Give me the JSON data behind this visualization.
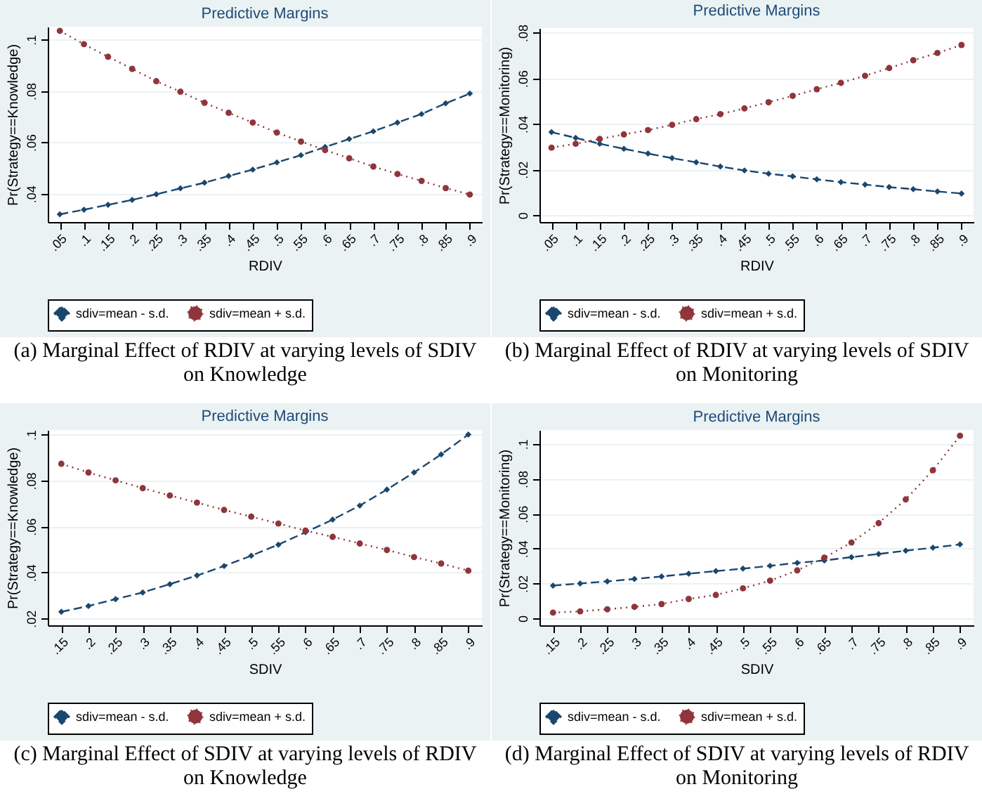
{
  "chart_data": [
    {
      "type": "line",
      "title": "Predictive Margins",
      "xlabel": "RDIV",
      "ylabel": "Pr(Strategy==Knowledge)",
      "categories": [
        ".05",
        ".1",
        ".15",
        ".2",
        ".25",
        ".3",
        ".35",
        ".4",
        ".45",
        ".5",
        ".55",
        ".6",
        ".65",
        ".7",
        ".75",
        ".8",
        ".85",
        ".9"
      ],
      "ylim": [
        0.029,
        0.105
      ],
      "yticks": [
        {
          "value": 0.04,
          "label": ".04"
        },
        {
          "value": 0.06,
          "label": ".06"
        },
        {
          "value": 0.08,
          "label": ".08"
        },
        {
          "value": 0.1,
          "label": ".1"
        }
      ],
      "grid": "y",
      "legend": "bottom",
      "series": [
        {
          "name": "sdiv=mean - s.d.",
          "color": "#1a476f",
          "marker": "diamond",
          "line_style": "dashed",
          "values": [
            0.032,
            0.0338,
            0.0357,
            0.0376,
            0.0398,
            0.0421,
            0.0443,
            0.0469,
            0.0494,
            0.0522,
            0.055,
            0.0582,
            0.0613,
            0.0643,
            0.0677,
            0.071,
            0.0752,
            0.079
          ]
        },
        {
          "name": "sdiv=mean + s.d.",
          "color": "#90353b",
          "marker": "circle",
          "line_style": "dotted",
          "values": [
            0.1034,
            0.0982,
            0.0933,
            0.0886,
            0.0838,
            0.0797,
            0.0754,
            0.0715,
            0.0677,
            0.0638,
            0.0603,
            0.057,
            0.0538,
            0.0506,
            0.0477,
            0.045,
            0.0422,
            0.0397
          ]
        }
      ],
      "annotations": [
        "(a) Marginal Effect of RDIV at varying levels of SDIV on Knowledge"
      ]
    },
    {
      "type": "line",
      "title": "Predictive Margins",
      "xlabel": "RDIV",
      "ylabel": "Pr(Strategy==Monitoring)",
      "categories": [
        ".05",
        ".1",
        ".15",
        ".2",
        ".25",
        ".3",
        ".35",
        ".4",
        ".45",
        ".5",
        ".55",
        ".6",
        ".65",
        ".7",
        ".75",
        ".8",
        ".85",
        ".9"
      ],
      "ylim": [
        -0.003,
        0.082
      ],
      "yticks": [
        {
          "value": 0,
          "label": "0"
        },
        {
          "value": 0.02,
          "label": ".02"
        },
        {
          "value": 0.04,
          "label": ".04"
        },
        {
          "value": 0.06,
          "label": ".06"
        },
        {
          "value": 0.08,
          "label": ".08"
        }
      ],
      "grid": "y",
      "legend": "bottom",
      "series": [
        {
          "name": "sdiv=mean - s.d.",
          "color": "#1a476f",
          "marker": "diamond",
          "line_style": "dashed",
          "values": [
            0.0364,
            0.0339,
            0.0313,
            0.0291,
            0.027,
            0.025,
            0.0232,
            0.0213,
            0.0196,
            0.0182,
            0.017,
            0.0157,
            0.0145,
            0.0134,
            0.0123,
            0.0114,
            0.0104,
            0.0095
          ]
        },
        {
          "name": "sdiv=mean + s.d.",
          "color": "#90353b",
          "marker": "circle",
          "line_style": "dotted",
          "values": [
            0.0296,
            0.0313,
            0.0334,
            0.0354,
            0.0373,
            0.0396,
            0.0421,
            0.0443,
            0.0468,
            0.0495,
            0.0523,
            0.0552,
            0.058,
            0.0611,
            0.0645,
            0.0679,
            0.0711,
            0.0746
          ]
        }
      ],
      "annotations": [
        "(b) Marginal Effect of RDIV at varying levels of  SDIV on Monitoring"
      ]
    },
    {
      "type": "line",
      "title": "Predictive Margins",
      "xlabel": "SDIV",
      "ylabel": "Pr(Strategy==Knowledge)",
      "categories": [
        ".15",
        ".2",
        ".25",
        ".3",
        ".35",
        ".4",
        ".45",
        ".5",
        ".55",
        ".6",
        ".65",
        ".7",
        ".75",
        ".8",
        ".85",
        ".9"
      ],
      "ylim": [
        0.017,
        0.102
      ],
      "yticks": [
        {
          "value": 0.02,
          "label": ".02"
        },
        {
          "value": 0.04,
          "label": ".04"
        },
        {
          "value": 0.06,
          "label": ".06"
        },
        {
          "value": 0.08,
          "label": ".08"
        },
        {
          "value": 0.1,
          "label": ".1"
        }
      ],
      "grid": "y",
      "legend": "bottom",
      "series": [
        {
          "name": "sdiv=mean - s.d.",
          "color": "#1a476f",
          "marker": "diamond",
          "line_style": "dashed",
          "values": [
            0.0229,
            0.0254,
            0.0284,
            0.0313,
            0.0349,
            0.0387,
            0.0428,
            0.0473,
            0.0521,
            0.0575,
            0.063,
            0.0691,
            0.0761,
            0.0835,
            0.0914,
            0.1
          ]
        },
        {
          "name": "sdiv=mean + s.d.",
          "color": "#90353b",
          "marker": "circle",
          "line_style": "dotted",
          "values": [
            0.0873,
            0.0835,
            0.0801,
            0.0767,
            0.0735,
            0.0704,
            0.0672,
            0.0643,
            0.0613,
            0.0582,
            0.0555,
            0.0526,
            0.0498,
            0.0467,
            0.0439,
            0.0408
          ]
        }
      ],
      "annotations": [
        "(c) Marginal Effect of SDIV at varying levels of RDIV on Knowledge"
      ]
    },
    {
      "type": "line",
      "title": "Predictive Margins",
      "xlabel": "SDIV",
      "ylabel": "Pr(Strategy==Monitoring)",
      "categories": [
        ".15",
        ".2",
        ".25",
        ".3",
        ".35",
        ".4",
        ".45",
        ".5",
        ".55",
        ".6",
        ".65",
        ".7",
        ".75",
        ".8",
        ".85",
        ".9"
      ],
      "ylim": [
        -0.004,
        0.108
      ],
      "yticks": [
        {
          "value": 0,
          "label": "0"
        },
        {
          "value": 0.02,
          "label": ".02"
        },
        {
          "value": 0.04,
          "label": ".04"
        },
        {
          "value": 0.06,
          "label": ".06"
        },
        {
          "value": 0.08,
          "label": ".08"
        },
        {
          "value": 0.1,
          "label": ".1"
        }
      ],
      "grid": "y",
      "legend": "bottom",
      "series": [
        {
          "name": "sdiv=mean - s.d.",
          "color": "#1a476f",
          "marker": "diamond",
          "line_style": "dashed",
          "values": [
            0.0188,
            0.02,
            0.0212,
            0.0226,
            0.024,
            0.0256,
            0.0271,
            0.0285,
            0.0301,
            0.0318,
            0.0332,
            0.0351,
            0.0369,
            0.0388,
            0.0405,
            0.0424
          ]
        },
        {
          "name": "sdiv=mean + s.d.",
          "color": "#90353b",
          "marker": "circle",
          "line_style": "dotted",
          "values": [
            0.0033,
            0.004,
            0.0052,
            0.0066,
            0.0082,
            0.0111,
            0.0134,
            0.0172,
            0.0216,
            0.0275,
            0.0348,
            0.0435,
            0.0546,
            0.0682,
            0.0849,
            0.1047
          ]
        }
      ],
      "annotations": [
        "(d) Marginal Effect of SDIV at varying levels of RDIV on Monitoring"
      ]
    }
  ]
}
